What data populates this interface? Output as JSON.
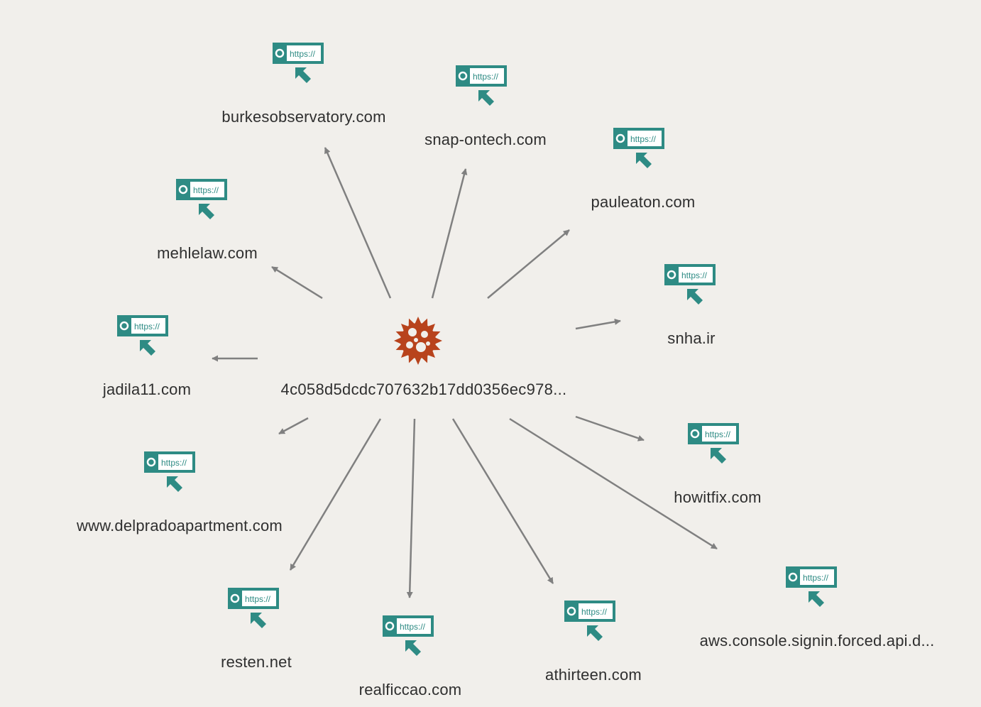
{
  "center": {
    "label": "4c058d5dcdc707632b17dd0356ec978...",
    "icon": "malware-virus-icon"
  },
  "url_badge_text": "https://",
  "colors": {
    "url_icon": "#2e8b84",
    "malware_icon": "#b8431c",
    "edge": "#808080",
    "background": "#f1efeb"
  },
  "nodes": [
    {
      "id": "burkesobservatory",
      "label": "burkesobservatory.com",
      "icon": "url-link-icon"
    },
    {
      "id": "snap-ontech",
      "label": "snap-ontech.com",
      "icon": "url-link-icon"
    },
    {
      "id": "pauleaton",
      "label": "pauleaton.com",
      "icon": "url-link-icon"
    },
    {
      "id": "mehlelaw",
      "label": "mehlelaw.com",
      "icon": "url-link-icon"
    },
    {
      "id": "snha",
      "label": "snha.ir",
      "icon": "url-link-icon"
    },
    {
      "id": "jadila11",
      "label": "jadila11.com",
      "icon": "url-link-icon"
    },
    {
      "id": "howitfix",
      "label": "howitfix.com",
      "icon": "url-link-icon"
    },
    {
      "id": "delpradoapartment",
      "label": "www.delpradoapartment.com",
      "icon": "url-link-icon"
    },
    {
      "id": "aws-console",
      "label": "aws.console.signin.forced.api.d...",
      "icon": "url-link-icon"
    },
    {
      "id": "resten",
      "label": "resten.net",
      "icon": "url-link-icon"
    },
    {
      "id": "athirteen",
      "label": "athirteen.com",
      "icon": "url-link-icon"
    },
    {
      "id": "realficcao",
      "label": "realficcao.com",
      "icon": "url-link-icon"
    }
  ],
  "edges": [
    {
      "from": "center",
      "to": "burkesobservatory"
    },
    {
      "from": "center",
      "to": "snap-ontech"
    },
    {
      "from": "center",
      "to": "pauleaton"
    },
    {
      "from": "center",
      "to": "mehlelaw"
    },
    {
      "from": "center",
      "to": "snha"
    },
    {
      "from": "center",
      "to": "jadila11"
    },
    {
      "from": "center",
      "to": "howitfix"
    },
    {
      "from": "center",
      "to": "delpradoapartment"
    },
    {
      "from": "center",
      "to": "aws-console"
    },
    {
      "from": "center",
      "to": "resten"
    },
    {
      "from": "center",
      "to": "athirteen"
    },
    {
      "from": "center",
      "to": "realficcao"
    }
  ]
}
